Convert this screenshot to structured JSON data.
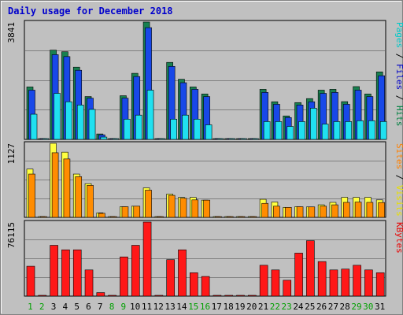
{
  "chart_data": {
    "type": "bar",
    "title": "Daily usage for December 2018",
    "days": [
      "1",
      "2",
      "3",
      "4",
      "5",
      "6",
      "7",
      "8",
      "9",
      "10",
      "11",
      "12",
      "13",
      "14",
      "15",
      "16",
      "17",
      "18",
      "19",
      "20",
      "21",
      "22",
      "23",
      "24",
      "25",
      "26",
      "27",
      "28",
      "29",
      "30",
      "31"
    ],
    "weekend_days": [
      "1",
      "2",
      "8",
      "9",
      "15",
      "16",
      "22",
      "23",
      "29",
      "30"
    ],
    "panels": [
      {
        "id": "hits",
        "ymax_label": "3841",
        "ymax": 3841,
        "legend": [
          {
            "text": "Pages",
            "color": "#00c8c8"
          },
          {
            "text": " / ",
            "color": "#000000"
          },
          {
            "text": "Files",
            "color": "#0000c8"
          },
          {
            "text": " / ",
            "color": "#000000"
          },
          {
            "text": "Hits",
            "color": "#008040"
          }
        ],
        "series": [
          {
            "name": "Hits",
            "color": "#188050",
            "values": [
              1717,
              0,
              2922,
              2869,
              2366,
              1403,
              178,
              0,
              1430,
              2163,
              3841,
              0,
              2521,
              1968,
              1717,
              1487,
              0,
              0,
              0,
              0,
              1640,
              1232,
              768,
              1205,
              1336,
              1612,
              1640,
              1236,
              1728,
              1487,
              2210
            ]
          },
          {
            "name": "Files",
            "color": "#1848e8",
            "values": [
              1612,
              0,
              2774,
              2711,
              2263,
              1350,
              150,
              0,
              1350,
              2058,
              3658,
              0,
              2390,
              1855,
              1640,
              1403,
              0,
              0,
              0,
              0,
              1538,
              1150,
              715,
              1126,
              1232,
              1507,
              1538,
              1150,
              1612,
              1403,
              2084
            ]
          },
          {
            "name": "Pages",
            "color": "#20e0f0",
            "values": [
              824,
              0,
              1507,
              1232,
              1126,
              983,
              76,
              0,
              663,
              794,
              1612,
              0,
              663,
              794,
              663,
              477,
              0,
              0,
              0,
              0,
              583,
              583,
              425,
              583,
              1021,
              502,
              583,
              583,
              612,
              612,
              585
            ]
          }
        ]
      },
      {
        "id": "visits",
        "ymax_label": "1127",
        "ymax": 1127,
        "legend": [
          {
            "text": "Sites",
            "color": "#ff8000"
          },
          {
            "text": " / ",
            "color": "#000000"
          },
          {
            "text": "Visits",
            "color": "#e8e000"
          }
        ],
        "series": [
          {
            "name": "Visits",
            "color": "#ffff40",
            "values": [
              735,
              0,
              1127,
              993,
              659,
              513,
              69,
              0,
              162,
              170,
              449,
              0,
              355,
              304,
              304,
              262,
              0,
              0,
              0,
              0,
              275,
              233,
              152,
              162,
              159,
              191,
              228,
              304,
              304,
              304,
              266
            ]
          },
          {
            "name": "Sites",
            "color": "#ff8c00",
            "values": [
              659,
              0,
              984,
              889,
              620,
              487,
              62,
              0,
              162,
              170,
              414,
              0,
              335,
              291,
              266,
              262,
              0,
              0,
              0,
              0,
              213,
              170,
              152,
              162,
              159,
              170,
              191,
              228,
              233,
              228,
              226
            ]
          }
        ]
      },
      {
        "id": "kbytes",
        "ymax_label": "76115",
        "ymax": 76115,
        "legend": [
          {
            "text": "KBytes",
            "color": "#e80000"
          }
        ],
        "series": [
          {
            "name": "KBytes",
            "color": "#ff1818",
            "values": [
              30700,
              0,
              52200,
              47600,
              47600,
              26900,
              3600,
              0,
              40300,
              52200,
              76115,
              0,
              37500,
              47600,
              24000,
              20200,
              0,
              0,
              0,
              0,
              31700,
              26900,
              16300,
              44200,
              57000,
              35500,
              26900,
              27800,
              31700,
              26900,
              24000
            ]
          }
        ]
      }
    ]
  }
}
